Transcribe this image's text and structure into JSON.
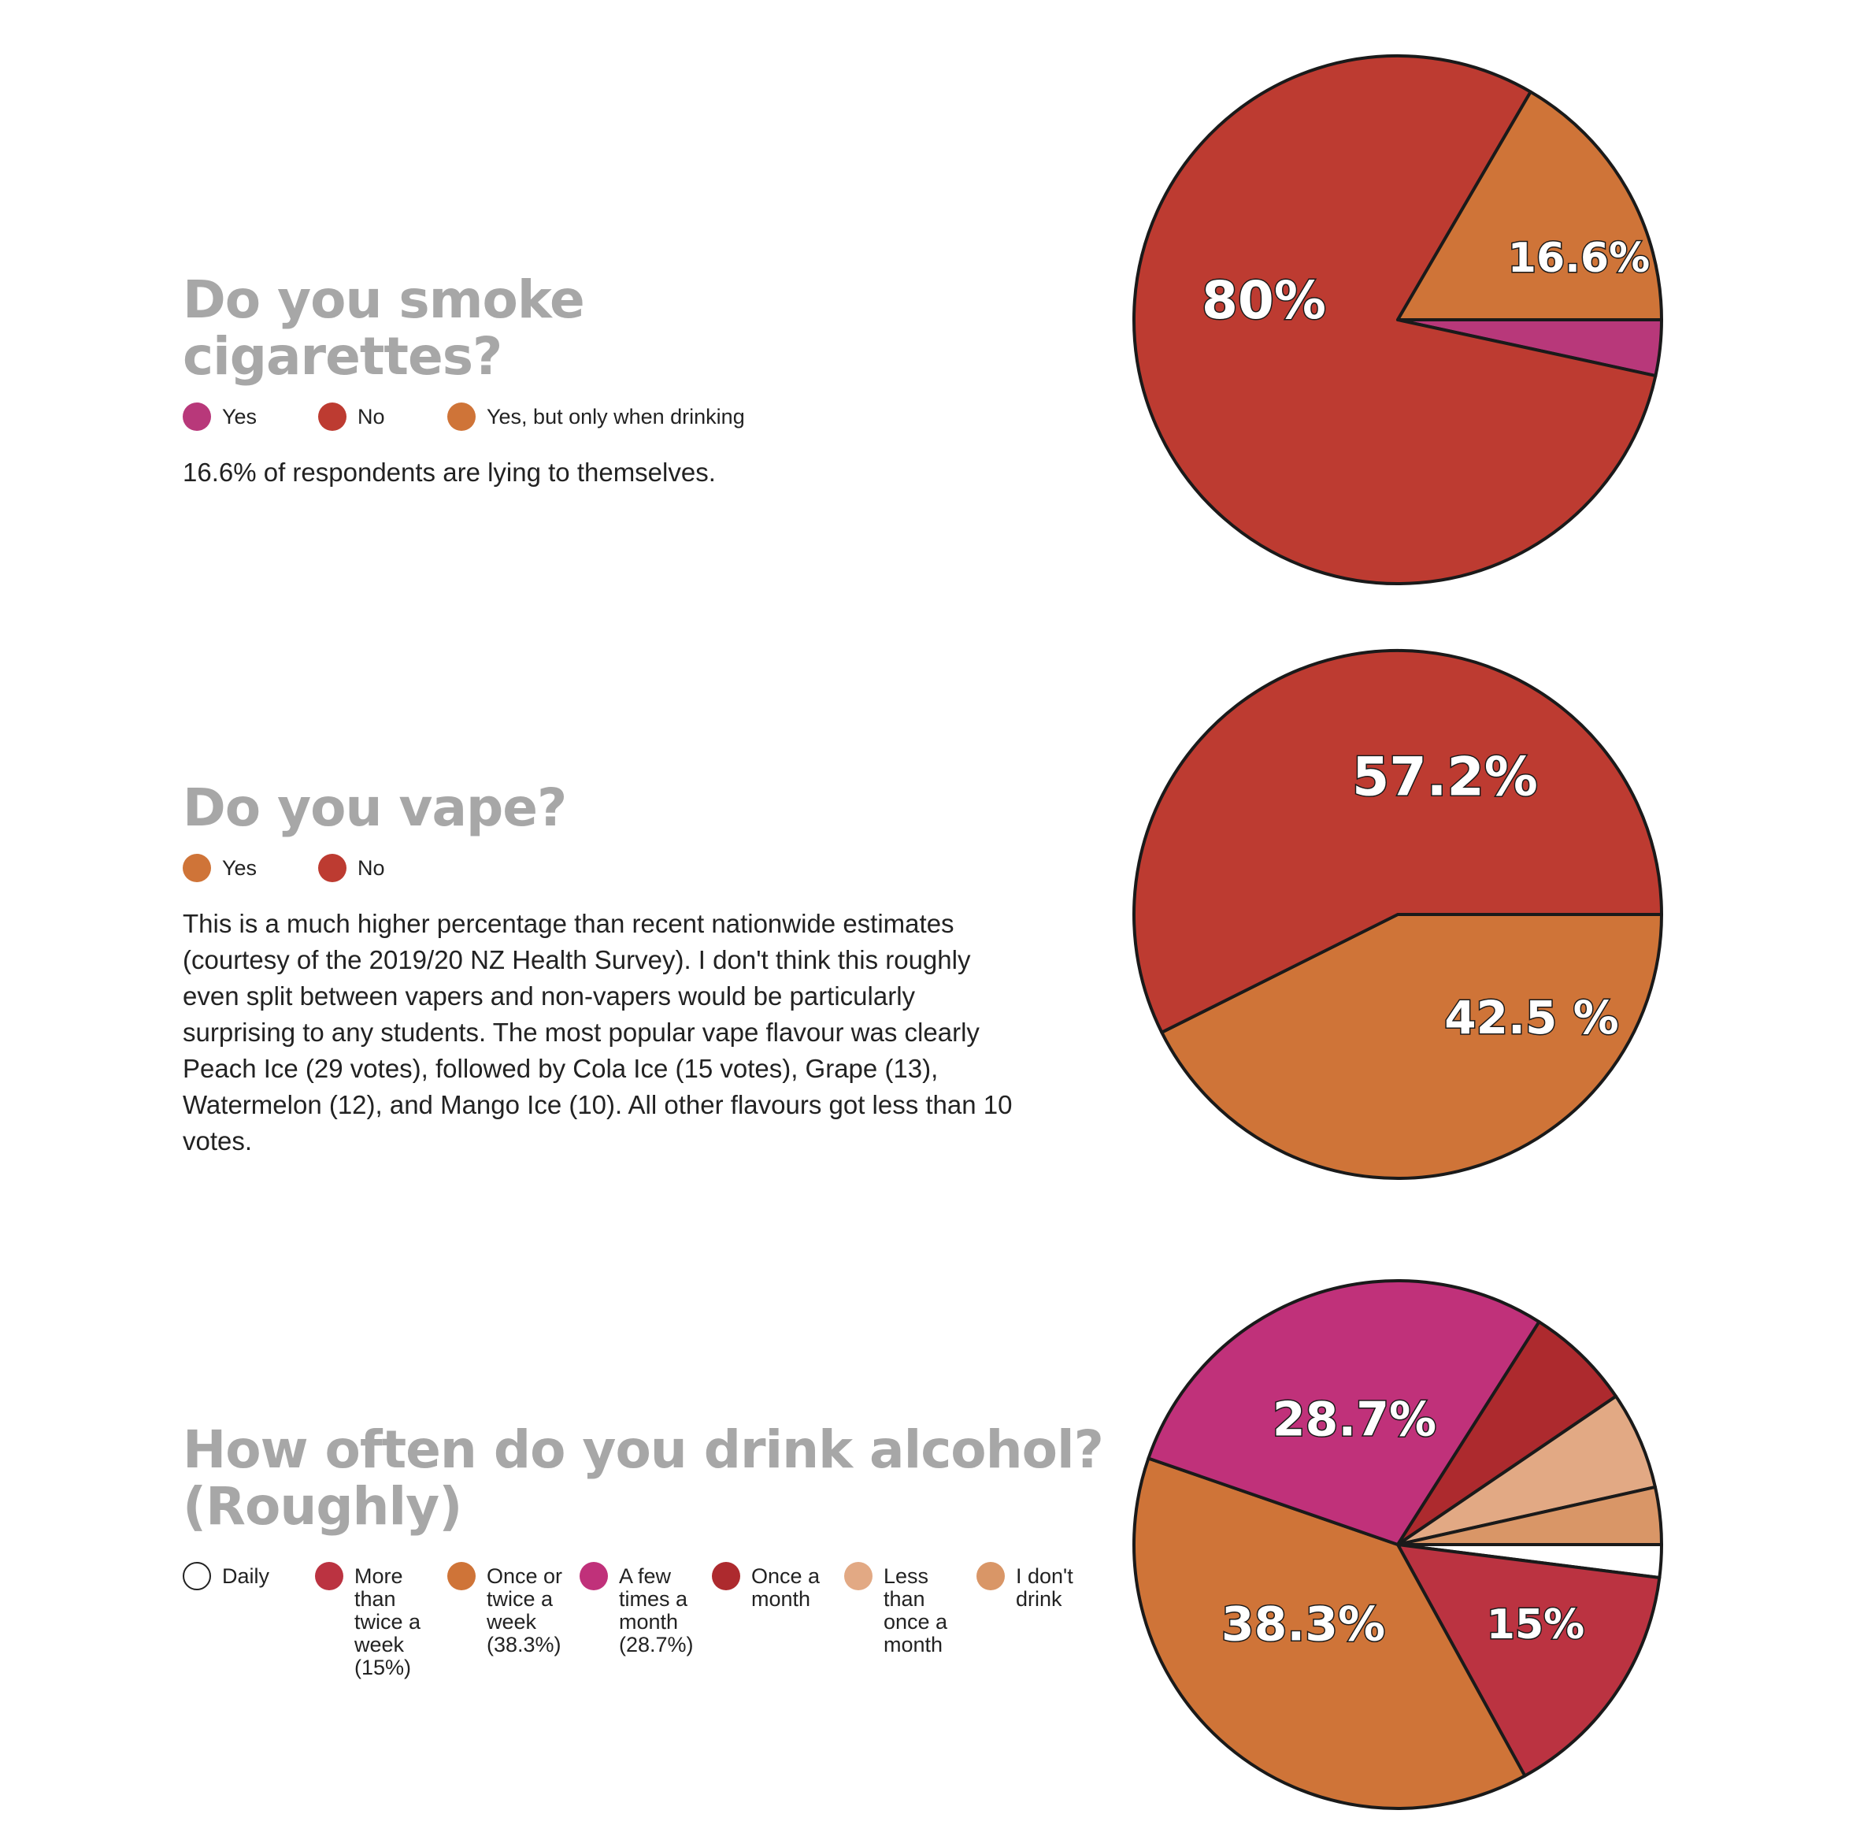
{
  "chart_data": [
    {
      "type": "pie",
      "title": "Do you smoke cigarettes?",
      "categories": [
        "Yes",
        "No",
        "Yes, but only when drinking"
      ],
      "values": [
        3.4,
        80,
        16.6
      ],
      "colors": [
        "#b8387a",
        "#bd3b31",
        "#cf7438"
      ],
      "data_labels": [
        "",
        "80%",
        "16.6%"
      ]
    },
    {
      "type": "pie",
      "title": "Do you vape?",
      "categories": [
        "Yes",
        "No"
      ],
      "values": [
        42.5,
        57.2
      ],
      "colors": [
        "#cf7438",
        "#bd3b31"
      ],
      "data_labels": [
        "42.5 %",
        "57.2%"
      ]
    },
    {
      "type": "pie",
      "title": "How often do you drink alcohol? (Roughly)",
      "categories": [
        "Daily",
        "More than twice a week (15%)",
        "Once or twice a week (38.3%)",
        "A few times a month (28.7%)",
        "Once a month",
        "Less than once a month",
        "I don't drink"
      ],
      "values": [
        2,
        15,
        38.3,
        28.7,
        6.5,
        6,
        3.5
      ],
      "colors": [
        "#ffffff",
        "#bb3341",
        "#cf7438",
        "#c0317a",
        "#ad2a2e",
        "#e2a984",
        "#d99667"
      ],
      "data_labels": [
        "",
        "15%",
        "38.3%",
        "28.7%",
        "",
        "",
        ""
      ]
    }
  ],
  "sections": [
    {
      "title": "Do you smoke cigarettes?",
      "legend": [
        "Yes",
        "No",
        "Yes, but only when drinking"
      ],
      "legend_colors": [
        "#b8387a",
        "#bd3b31",
        "#cf7438"
      ],
      "text": "16.6% of respondents are lying to themselves."
    },
    {
      "title": "Do you vape?",
      "legend": [
        "Yes",
        "No"
      ],
      "legend_colors": [
        "#cf7438",
        "#bd3b31"
      ],
      "text": "This is a much higher percentage than recent nationwide estimates (courtesy of the 2019/20 NZ Health Survey). I don't think this roughly even split between vapers and non-vapers would be particularly surprising to any students. The most popular vape flavour was clearly Peach Ice (29 votes), followed by Cola Ice (15 votes), Grape (13), Watermelon (12), and Mango Ice (10). All other flavours got less than 10 votes."
    },
    {
      "title_line1": "How often do you drink alcohol?",
      "title_line2": "(Roughly)",
      "legend": [
        "Daily",
        "More than twice a week (15%)",
        "Once or twice a week (38.3%)",
        "A few times a month (28.7%)",
        "Once a month",
        "Less than once a month",
        "I don't drink"
      ],
      "legend_colors": [
        "#ffffff",
        "#bb3341",
        "#cf7438",
        "#c0317a",
        "#ad2a2e",
        "#e2a984",
        "#d99667"
      ]
    }
  ]
}
